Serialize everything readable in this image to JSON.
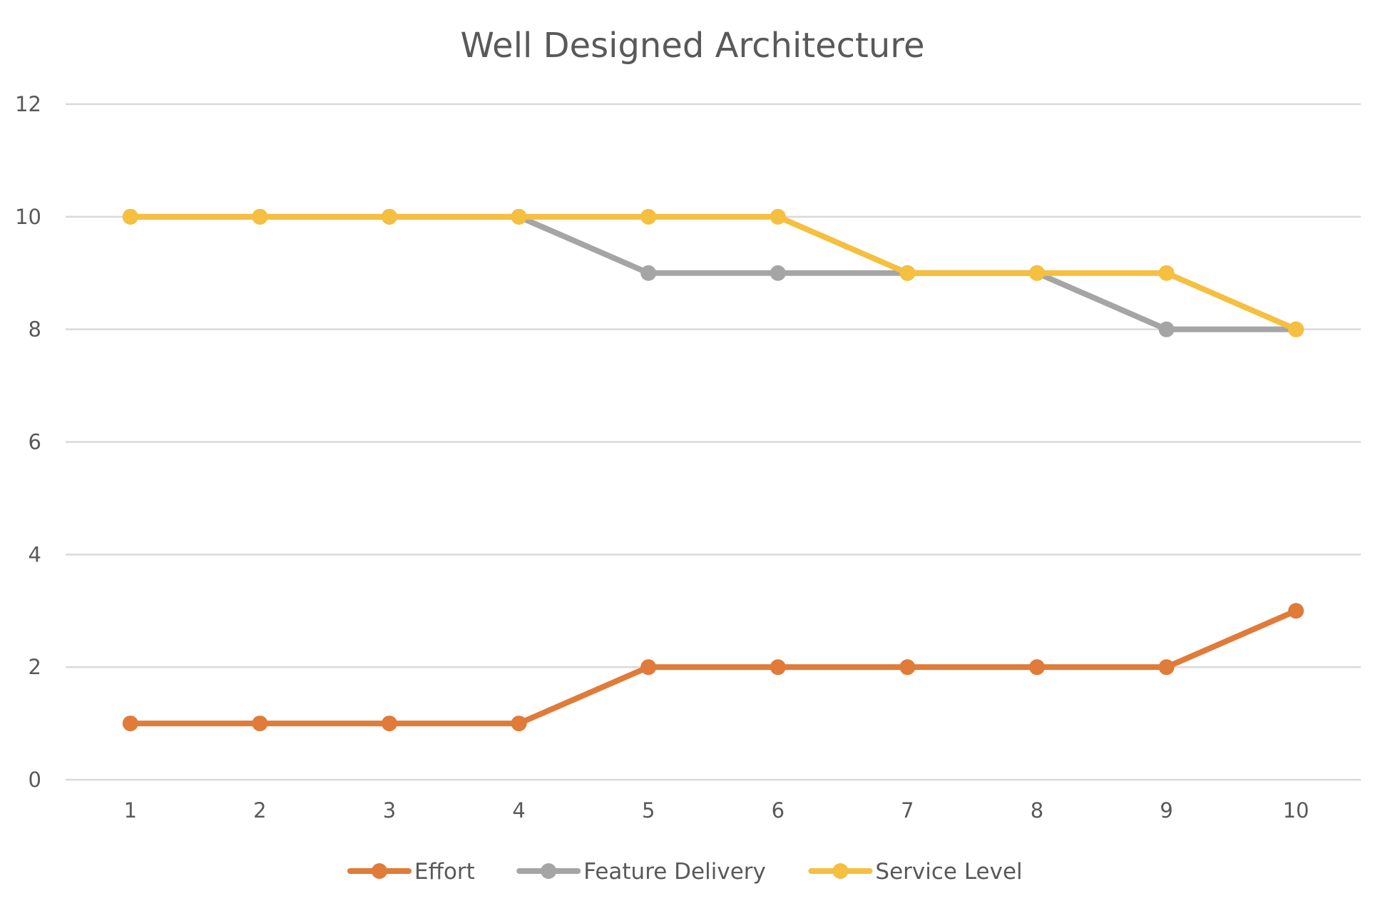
{
  "chart_data": {
    "type": "line",
    "title": "Well Designed Architecture",
    "xlabel": "",
    "ylabel": "",
    "categories": [
      "1",
      "2",
      "3",
      "4",
      "5",
      "6",
      "7",
      "8",
      "9",
      "10"
    ],
    "ylim": [
      0,
      12
    ],
    "yticks": [
      "0",
      "2",
      "4",
      "6",
      "8",
      "10",
      "12"
    ],
    "grid": true,
    "legend_position": "bottom",
    "series": [
      {
        "name": "Effort",
        "color": "#e07b39",
        "values": [
          1,
          1,
          1,
          1,
          2,
          2,
          2,
          2,
          2,
          3
        ]
      },
      {
        "name": "Feature Delivery",
        "color": "#a5a5a5",
        "values": [
          10,
          10,
          10,
          10,
          9,
          9,
          9,
          9,
          8,
          8
        ]
      },
      {
        "name": "Service Level",
        "color": "#f5bf3f",
        "values": [
          10,
          10,
          10,
          10,
          10,
          10,
          9,
          9,
          9,
          8
        ]
      }
    ]
  }
}
